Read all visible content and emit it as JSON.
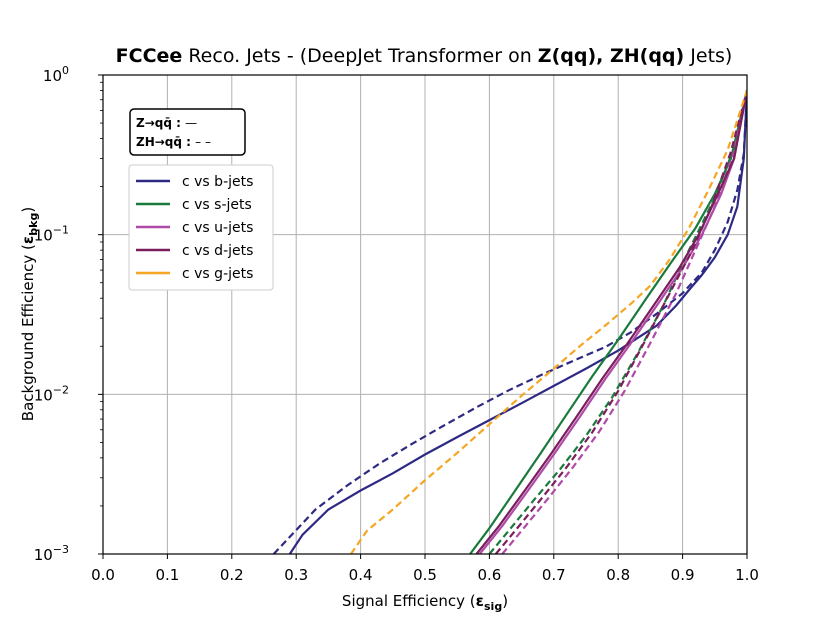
{
  "chart_data": {
    "type": "line",
    "title_parts": [
      {
        "text": "FCCee",
        "bold": true
      },
      {
        "text": " Reco. Jets - (DeepJet Transformer on ",
        "bold": false
      },
      {
        "text": "Z(qq), ZH(qq)",
        "bold": true
      },
      {
        "text": " Jets)",
        "bold": false
      }
    ],
    "xlabel": "Signal Efficiency (",
    "xlabel_symbol": "ε",
    "xlabel_sub": "sig",
    "xlabel_end": ")",
    "ylabel": "Background Efficiency (",
    "ylabel_symbol": "ε",
    "ylabel_sub": "bkg",
    "ylabel_end": ")",
    "xlim": [
      0.0,
      1.0
    ],
    "ylim_log10": [
      -3,
      0
    ],
    "xticks": [
      "0.0",
      "0.1",
      "0.2",
      "0.3",
      "0.4",
      "0.5",
      "0.6",
      "0.7",
      "0.8",
      "0.9",
      "1.0"
    ],
    "yticks": [
      {
        "base": "10",
        "exp": "−3",
        "value": 0.001
      },
      {
        "base": "10",
        "exp": "−2",
        "value": 0.01
      },
      {
        "base": "10",
        "exp": "−1",
        "value": 0.1
      },
      {
        "base": "10",
        "exp": "0",
        "value": 1
      }
    ],
    "grid": true,
    "style_legend": [
      {
        "label": "Z→qq̄ :",
        "symbol": "—"
      },
      {
        "label": "ZH→qq̄ :",
        "symbol": "– –"
      }
    ],
    "series": [
      {
        "name": "c vs b-jets",
        "color": "#2e2a84",
        "solid": [
          [
            0.29,
            0.001
          ],
          [
            0.31,
            0.00132
          ],
          [
            0.35,
            0.0019
          ],
          [
            0.4,
            0.0025
          ],
          [
            0.45,
            0.0032
          ],
          [
            0.5,
            0.0042
          ],
          [
            0.55,
            0.0054
          ],
          [
            0.6,
            0.0069
          ],
          [
            0.65,
            0.0088
          ],
          [
            0.7,
            0.0113
          ],
          [
            0.75,
            0.0145
          ],
          [
            0.8,
            0.0188
          ],
          [
            0.83,
            0.0225
          ],
          [
            0.86,
            0.027
          ],
          [
            0.89,
            0.036
          ],
          [
            0.91,
            0.045
          ],
          [
            0.93,
            0.056
          ],
          [
            0.95,
            0.072
          ],
          [
            0.97,
            0.1
          ],
          [
            0.985,
            0.15
          ],
          [
            0.995,
            0.3
          ],
          [
            1.0,
            0.8
          ]
        ],
        "dashed": [
          [
            0.265,
            0.001
          ],
          [
            0.29,
            0.00128
          ],
          [
            0.33,
            0.0019
          ],
          [
            0.38,
            0.0027
          ],
          [
            0.43,
            0.0037
          ],
          [
            0.48,
            0.0049
          ],
          [
            0.53,
            0.0064
          ],
          [
            0.58,
            0.0083
          ],
          [
            0.63,
            0.0106
          ],
          [
            0.68,
            0.0132
          ],
          [
            0.73,
            0.0162
          ],
          [
            0.78,
            0.0198
          ],
          [
            0.82,
            0.0245
          ],
          [
            0.86,
            0.032
          ],
          [
            0.9,
            0.043
          ],
          [
            0.93,
            0.058
          ],
          [
            0.95,
            0.08
          ],
          [
            0.97,
            0.12
          ],
          [
            0.985,
            0.19
          ],
          [
            0.995,
            0.32
          ],
          [
            1.0,
            0.8
          ]
        ]
      },
      {
        "name": "c vs s-jets",
        "color": "#1a7a3c",
        "solid": [
          [
            0.57,
            0.001
          ],
          [
            0.6,
            0.00145
          ],
          [
            0.64,
            0.0025
          ],
          [
            0.68,
            0.0043
          ],
          [
            0.72,
            0.0075
          ],
          [
            0.76,
            0.013
          ],
          [
            0.8,
            0.022
          ],
          [
            0.84,
            0.038
          ],
          [
            0.88,
            0.065
          ],
          [
            0.92,
            0.11
          ],
          [
            0.95,
            0.18
          ],
          [
            0.975,
            0.3
          ],
          [
            1.0,
            0.8
          ]
        ],
        "dashed": [
          [
            0.6,
            0.001
          ],
          [
            0.63,
            0.0014
          ],
          [
            0.67,
            0.0022
          ],
          [
            0.71,
            0.0034
          ],
          [
            0.75,
            0.0055
          ],
          [
            0.79,
            0.0095
          ],
          [
            0.83,
            0.018
          ],
          [
            0.87,
            0.036
          ],
          [
            0.91,
            0.08
          ],
          [
            0.95,
            0.17
          ],
          [
            0.98,
            0.35
          ],
          [
            1.0,
            0.8
          ]
        ]
      },
      {
        "name": "c vs u-jets",
        "color": "#b04aa8",
        "solid": [
          [
            0.585,
            0.001
          ],
          [
            0.62,
            0.0015
          ],
          [
            0.66,
            0.0025
          ],
          [
            0.7,
            0.0042
          ],
          [
            0.74,
            0.0072
          ],
          [
            0.78,
            0.0125
          ],
          [
            0.82,
            0.021
          ],
          [
            0.86,
            0.036
          ],
          [
            0.9,
            0.062
          ],
          [
            0.93,
            0.1
          ],
          [
            0.96,
            0.18
          ],
          [
            0.98,
            0.3
          ],
          [
            1.0,
            0.8
          ]
        ],
        "dashed": [
          [
            0.62,
            0.001
          ],
          [
            0.65,
            0.0014
          ],
          [
            0.69,
            0.0022
          ],
          [
            0.73,
            0.0035
          ],
          [
            0.77,
            0.0058
          ],
          [
            0.81,
            0.0105
          ],
          [
            0.85,
            0.021
          ],
          [
            0.89,
            0.043
          ],
          [
            0.92,
            0.08
          ],
          [
            0.95,
            0.15
          ],
          [
            0.98,
            0.33
          ],
          [
            1.0,
            0.8
          ]
        ]
      },
      {
        "name": "c vs d-jets",
        "color": "#7a1e5c",
        "solid": [
          [
            0.58,
            0.001
          ],
          [
            0.615,
            0.0015
          ],
          [
            0.655,
            0.0025
          ],
          [
            0.695,
            0.0042
          ],
          [
            0.735,
            0.0072
          ],
          [
            0.775,
            0.0125
          ],
          [
            0.815,
            0.021
          ],
          [
            0.855,
            0.036
          ],
          [
            0.895,
            0.062
          ],
          [
            0.925,
            0.1
          ],
          [
            0.955,
            0.18
          ],
          [
            0.98,
            0.3
          ],
          [
            1.0,
            0.8
          ]
        ],
        "dashed": [
          [
            0.61,
            0.001
          ],
          [
            0.64,
            0.0014
          ],
          [
            0.68,
            0.0022
          ],
          [
            0.72,
            0.0035
          ],
          [
            0.76,
            0.0058
          ],
          [
            0.8,
            0.0105
          ],
          [
            0.84,
            0.021
          ],
          [
            0.88,
            0.043
          ],
          [
            0.915,
            0.08
          ],
          [
            0.945,
            0.15
          ],
          [
            0.975,
            0.33
          ],
          [
            1.0,
            0.8
          ]
        ]
      },
      {
        "name": "c vs g-jets",
        "color": "#f5a623",
        "solid": [],
        "dashed": [
          [
            0.385,
            0.001
          ],
          [
            0.41,
            0.0014
          ],
          [
            0.45,
            0.0019
          ],
          [
            0.5,
            0.0029
          ],
          [
            0.55,
            0.0043
          ],
          [
            0.6,
            0.0065
          ],
          [
            0.65,
            0.0098
          ],
          [
            0.7,
            0.0145
          ],
          [
            0.74,
            0.02
          ],
          [
            0.78,
            0.027
          ],
          [
            0.82,
            0.037
          ],
          [
            0.85,
            0.048
          ],
          [
            0.88,
            0.07
          ],
          [
            0.91,
            0.11
          ],
          [
            0.94,
            0.19
          ],
          [
            0.97,
            0.34
          ],
          [
            1.0,
            0.8
          ]
        ]
      }
    ]
  }
}
